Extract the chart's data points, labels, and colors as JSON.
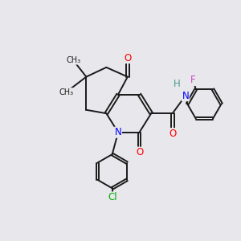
{
  "bg_color": "#e8e8ec",
  "bond_color": "#1a1a1a",
  "N_color": "#0000ff",
  "O_color": "#ff0000",
  "F_color": "#cc44cc",
  "Cl_color": "#00aa00",
  "H_color": "#4a9a8a",
  "C_color": "#1a1a1a",
  "bond_width": 1.4,
  "font_size": 8.5,
  "fig_size": [
    3.0,
    3.0
  ],
  "dpi": 100,
  "xlim": [
    0,
    10
  ],
  "ylim": [
    0,
    10
  ]
}
